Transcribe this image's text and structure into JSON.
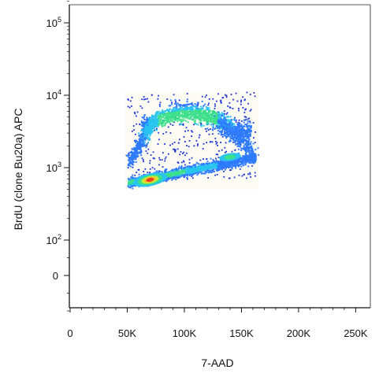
{
  "chart_data": {
    "type": "density-plot",
    "xlabel": "7-AAD",
    "ylabel": "BrdU (clone Bu20a) APC",
    "xlim": [
      0,
      262144
    ],
    "x_ticks": [
      {
        "value": 0,
        "label": "0"
      },
      {
        "value": 50000,
        "label": "50K"
      },
      {
        "value": 100000,
        "label": "100K"
      },
      {
        "value": 150000,
        "label": "150K"
      },
      {
        "value": 200000,
        "label": "200K"
      },
      {
        "value": 250000,
        "label": "250K"
      }
    ],
    "y_scale": "biexponential",
    "y_ticks_major": [
      {
        "value": 0,
        "base": "0",
        "exp": ""
      },
      {
        "value": 100,
        "base": "10",
        "exp": "2"
      },
      {
        "value": 1000,
        "base": "10",
        "exp": "3"
      },
      {
        "value": 10000,
        "base": "10",
        "exp": "4"
      },
      {
        "value": 100000,
        "base": "10",
        "exp": "5"
      }
    ],
    "density_colors": [
      "#1a2fd6",
      "#2f7bff",
      "#29c4f0",
      "#3de08a",
      "#c8ec3a",
      "#f5c42a",
      "#e8401c"
    ],
    "populations": [
      {
        "kind": "G1",
        "x_range": [
          50000,
          160000
        ],
        "y_range": [
          600,
          1400
        ],
        "peak": [
          70000,
          680
        ]
      },
      {
        "kind": "S",
        "x_range": [
          60000,
          160000
        ],
        "y_range": [
          1200,
          10000
        ],
        "peak": [
          100000,
          5000
        ]
      },
      {
        "kind": "G2/M",
        "x_range": [
          120000,
          160000
        ],
        "y_range": [
          1100,
          2000
        ],
        "peak": [
          140000,
          1400
        ]
      }
    ]
  }
}
